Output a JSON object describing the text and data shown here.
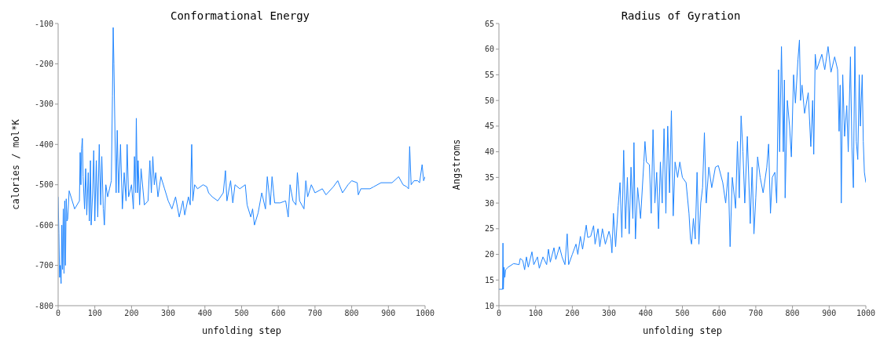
{
  "chart_data": [
    {
      "type": "line",
      "title": "Conformational Energy",
      "xlabel": "unfolding step",
      "ylabel": "calories / mol*K",
      "xlim": [
        0,
        1000
      ],
      "xticks": [
        0,
        100,
        200,
        300,
        400,
        500,
        600,
        700,
        800,
        900,
        1000
      ],
      "ylim": [
        -800,
        -100
      ],
      "yticks": [
        -800,
        -700,
        -600,
        -500,
        -400,
        -300,
        -200,
        -100
      ],
      "grid": false,
      "legend": false,
      "marker": "none",
      "series": [
        {
          "color": "#1f85ff",
          "x": [
            0,
            2,
            4,
            6,
            8,
            10,
            12,
            14,
            16,
            18,
            20,
            22,
            24,
            26,
            30,
            45,
            58,
            60,
            62,
            64,
            66,
            68,
            72,
            75,
            78,
            82,
            85,
            88,
            90,
            94,
            97,
            100,
            104,
            108,
            112,
            116,
            119,
            123,
            126,
            130,
            135,
            140,
            145,
            148,
            150,
            152,
            155,
            158,
            161,
            165,
            170,
            175,
            180,
            185,
            188,
            192,
            200,
            205,
            208,
            211,
            213,
            216,
            218,
            222,
            226,
            235,
            245,
            250,
            254,
            258,
            262,
            266,
            272,
            280,
            290,
            300,
            310,
            320,
            330,
            340,
            345,
            355,
            360,
            364,
            367,
            372,
            380,
            395,
            405,
            410,
            420,
            435,
            450,
            456,
            460,
            470,
            476,
            482,
            495,
            510,
            515,
            525,
            530,
            535,
            545,
            555,
            565,
            570,
            578,
            583,
            590,
            605,
            620,
            627,
            632,
            640,
            648,
            652,
            658,
            670,
            675,
            680,
            690,
            700,
            720,
            730,
            750,
            762,
            775,
            790,
            800,
            815,
            818,
            825,
            850,
            860,
            880,
            910,
            928,
            940,
            950,
            955,
            958,
            962,
            970,
            980,
            985,
            992,
            996,
            1000
          ],
          "values": [
            -530,
            -620,
            -730,
            -700,
            -745,
            -600,
            -710,
            -560,
            -720,
            -540,
            -700,
            -535,
            -590,
            -585,
            -515,
            -560,
            -540,
            -420,
            -500,
            -410,
            -385,
            -480,
            -560,
            -460,
            -575,
            -470,
            -590,
            -440,
            -600,
            -520,
            -415,
            -590,
            -440,
            -580,
            -400,
            -550,
            -430,
            -560,
            -600,
            -500,
            -530,
            -510,
            -490,
            -280,
            -110,
            -200,
            -380,
            -520,
            -365,
            -520,
            -400,
            -560,
            -470,
            -540,
            -400,
            -530,
            -500,
            -560,
            -430,
            -520,
            -335,
            -520,
            -440,
            -550,
            -460,
            -550,
            -540,
            -440,
            -520,
            -430,
            -500,
            -470,
            -530,
            -480,
            -510,
            -540,
            -560,
            -530,
            -580,
            -540,
            -575,
            -530,
            -550,
            -400,
            -540,
            -500,
            -510,
            -500,
            -505,
            -520,
            -530,
            -540,
            -520,
            -465,
            -540,
            -490,
            -545,
            -500,
            -510,
            -500,
            -550,
            -580,
            -560,
            -600,
            -570,
            -520,
            -560,
            -480,
            -550,
            -480,
            -545,
            -545,
            -540,
            -580,
            -500,
            -540,
            -550,
            -470,
            -540,
            -560,
            -490,
            -530,
            -500,
            -520,
            -510,
            -525,
            -505,
            -490,
            -520,
            -500,
            -490,
            -495,
            -525,
            -510,
            -510,
            -505,
            -495,
            -495,
            -480,
            -500,
            -505,
            -510,
            -405,
            -500,
            -490,
            -490,
            -495,
            -450,
            -490,
            -480
          ]
        }
      ]
    },
    {
      "type": "line",
      "title": "Radius of Gyration",
      "xlabel": "unfolding step",
      "ylabel": "Angstroms",
      "xlim": [
        0,
        1000
      ],
      "xticks": [
        0,
        100,
        200,
        300,
        400,
        500,
        600,
        700,
        800,
        900,
        1000
      ],
      "ylim": [
        10,
        65
      ],
      "yticks": [
        10,
        15,
        20,
        25,
        30,
        35,
        40,
        45,
        50,
        55,
        60,
        65
      ],
      "grid": false,
      "legend": false,
      "marker": "none",
      "series": [
        {
          "color": "#1f85ff",
          "x": [
            0,
            5,
            10,
            11,
            12,
            14,
            16,
            18,
            25,
            40,
            55,
            58,
            65,
            70,
            75,
            80,
            90,
            95,
            105,
            110,
            120,
            130,
            135,
            140,
            150,
            155,
            165,
            172,
            180,
            186,
            190,
            200,
            210,
            215,
            222,
            228,
            238,
            242,
            250,
            258,
            262,
            270,
            275,
            282,
            290,
            300,
            305,
            308,
            312,
            318,
            325,
            330,
            335,
            340,
            345,
            350,
            355,
            360,
            365,
            368,
            372,
            378,
            386,
            395,
            398,
            402,
            410,
            415,
            420,
            425,
            430,
            435,
            440,
            445,
            450,
            455,
            460,
            465,
            470,
            475,
            480,
            487,
            493,
            500,
            510,
            518,
            522,
            525,
            530,
            535,
            540,
            545,
            550,
            555,
            560,
            565,
            572,
            580,
            590,
            598,
            610,
            618,
            625,
            630,
            636,
            645,
            650,
            655,
            660,
            665,
            670,
            677,
            685,
            690,
            695,
            700,
            705,
            712,
            720,
            730,
            735,
            740,
            745,
            752,
            757,
            762,
            765,
            770,
            775,
            778,
            780,
            786,
            792,
            797,
            803,
            808,
            815,
            819,
            822,
            826,
            833,
            843,
            850,
            855,
            858,
            862,
            866,
            880,
            888,
            897,
            905,
            915,
            923,
            927,
            930,
            933,
            937,
            942,
            948,
            952,
            958,
            962,
            966,
            970,
            974,
            978,
            982,
            985,
            990,
            993,
            996,
            1000
          ],
          "values": [
            13.2,
            13.2,
            13.2,
            22.2,
            13.2,
            17.5,
            15.5,
            17,
            17.5,
            18.2,
            18,
            19.2,
            18.8,
            17,
            19.5,
            17.5,
            20.5,
            18,
            19.5,
            17.3,
            19.5,
            18,
            21,
            18.5,
            21.3,
            19,
            21.5,
            19.5,
            18,
            24,
            18,
            20,
            22,
            20,
            23.5,
            21,
            25.7,
            23.3,
            23.5,
            25.6,
            22,
            25,
            21.5,
            25,
            22,
            24.5,
            23,
            20.3,
            28,
            21.5,
            29.5,
            34,
            23.3,
            40.3,
            25,
            35,
            24,
            37,
            27,
            41.8,
            23,
            33,
            27,
            38,
            42,
            38,
            37.5,
            28,
            44.3,
            30,
            36,
            25,
            38,
            30,
            44.5,
            28,
            45,
            32,
            48,
            27.5,
            38,
            35,
            38,
            35,
            34,
            28,
            23,
            22,
            27,
            23,
            36,
            22,
            30,
            33,
            43.7,
            30,
            37,
            33,
            37,
            37.3,
            34,
            30,
            36,
            21.5,
            35,
            29,
            42,
            31,
            47,
            40,
            30,
            43,
            26,
            37,
            24,
            31,
            39,
            35,
            32,
            37,
            41.5,
            28,
            35,
            36,
            30,
            56,
            40,
            60.5,
            40,
            54,
            31,
            50,
            45,
            39,
            55,
            49.5,
            58,
            61.8,
            50,
            53,
            47.5,
            51.5,
            41,
            50,
            39.5,
            59,
            56,
            59,
            56,
            60.5,
            55.5,
            58.5,
            56,
            44,
            53,
            30,
            55,
            43,
            49,
            40,
            58.5,
            41,
            33,
            60.5,
            42,
            38.5,
            55,
            45,
            55,
            42,
            36,
            34
          ]
        }
      ]
    }
  ]
}
